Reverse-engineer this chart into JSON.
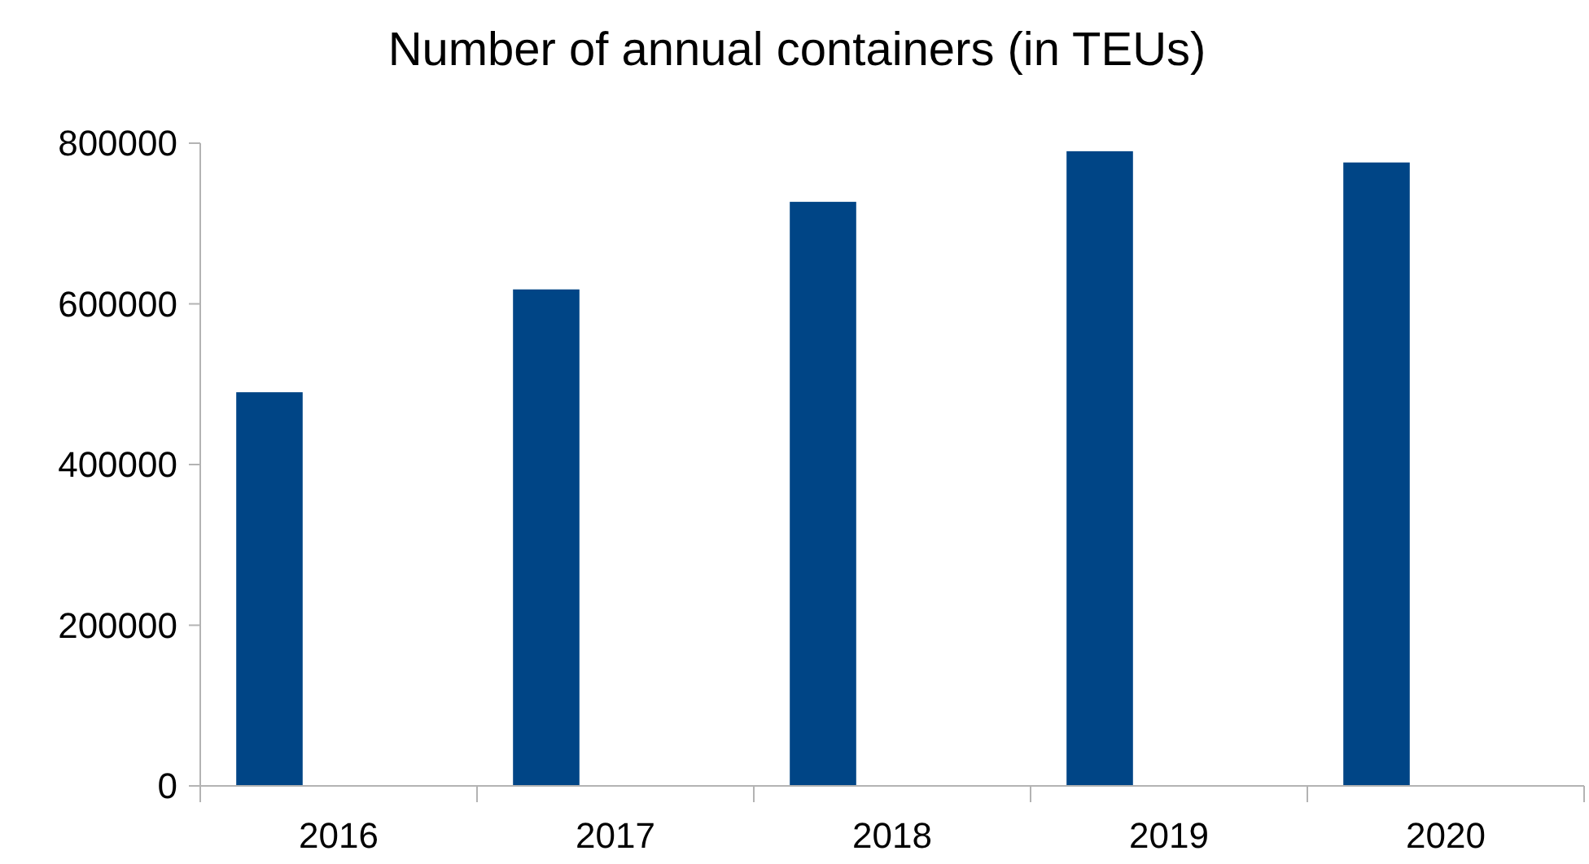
{
  "chart_data": {
    "type": "bar",
    "title": "Number of annual containers (in TEUs)",
    "categories": [
      "2016",
      "2017",
      "2018",
      "2019",
      "2020"
    ],
    "values": [
      490000,
      618000,
      727000,
      790000,
      776000
    ],
    "color": "#004586",
    "ylim": [
      0,
      800000
    ],
    "yticks": [
      0,
      200000,
      400000,
      600000,
      800000
    ],
    "grid": false
  }
}
